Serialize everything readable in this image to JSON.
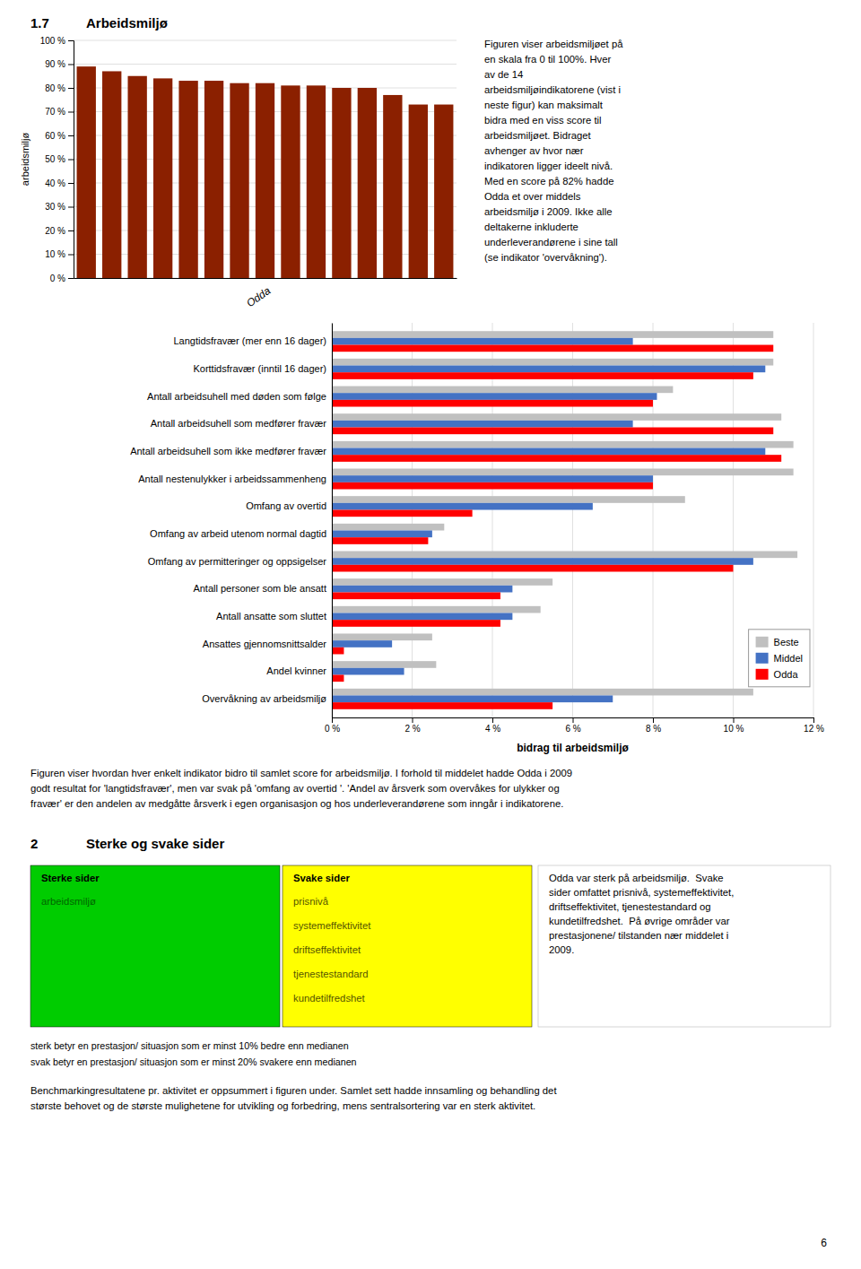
{
  "heading": {
    "number": "1.7",
    "text": "Arbeidsmiljø"
  },
  "chart_data": [
    {
      "type": "bar",
      "categories": [
        null,
        null,
        null,
        null,
        null,
        null,
        null,
        "Odda",
        null,
        null,
        null,
        null,
        null,
        null,
        null
      ],
      "values": [
        89,
        87,
        85,
        84,
        83,
        83,
        82,
        82,
        81,
        81,
        80,
        80,
        77,
        73,
        73
      ],
      "color": "#8B2000",
      "ylabel": "arbeidsmiljø",
      "ylim": [
        0,
        100
      ],
      "yticks": [
        {
          "value": 0,
          "label": "0 %"
        },
        {
          "value": 10,
          "label": "10 %"
        },
        {
          "value": 20,
          "label": "20 %"
        },
        {
          "value": 30,
          "label": "30 %"
        },
        {
          "value": 40,
          "label": "40 %"
        },
        {
          "value": 50,
          "label": "50 %"
        },
        {
          "value": 60,
          "label": "60 %"
        },
        {
          "value": 70,
          "label": "70 %"
        },
        {
          "value": 80,
          "label": "80 %"
        },
        {
          "value": 90,
          "label": "90 %"
        },
        {
          "value": 100,
          "label": "100 %"
        }
      ],
      "grid": true
    },
    {
      "type": "bar",
      "orientation": "horizontal",
      "categories": [
        "Langtidsfravær (mer enn 16 dager)",
        "Korttidsfravær (inntil 16 dager)",
        "Antall arbeidsuhell med døden som følge",
        "Antall arbeidsuhell som medfører fravær",
        "Antall arbeidsuhell som ikke medfører fravær",
        "Antall nestenulykker i arbeidssammenheng",
        "Omfang av overtid",
        "Omfang av arbeid utenom normal dagtid",
        "Omfang av permitteringer og oppsigelser",
        "Antall personer som ble ansatt",
        "Antall ansatte som sluttet",
        "Ansattes gjennomsnittsalder",
        "Andel kvinner",
        "Overvåkning av arbeidsmiljø"
      ],
      "series": [
        {
          "name": "Beste",
          "color": "#C0C0C0",
          "values": [
            11.0,
            11.0,
            8.5,
            11.2,
            11.5,
            11.5,
            8.8,
            2.8,
            11.6,
            5.5,
            5.2,
            2.5,
            2.6,
            10.5
          ]
        },
        {
          "name": "Middel",
          "color": "#4472C4",
          "values": [
            7.5,
            10.8,
            8.1,
            7.5,
            10.8,
            8.0,
            6.5,
            2.5,
            10.5,
            4.5,
            4.5,
            1.5,
            1.8,
            7.0
          ]
        },
        {
          "name": "Odda",
          "color": "#FF0000",
          "values": [
            11.0,
            10.5,
            8.0,
            11.0,
            11.2,
            8.0,
            3.5,
            2.4,
            10.0,
            4.2,
            4.2,
            0.3,
            0.3,
            5.5
          ]
        }
      ],
      "xlabel": "bidrag til arbeidsmiljø",
      "xlim": [
        0,
        12
      ],
      "xticks": [
        {
          "value": 0,
          "label": "0 %"
        },
        {
          "value": 2,
          "label": "2 %"
        },
        {
          "value": 4,
          "label": "4 %"
        },
        {
          "value": 6,
          "label": "6 %"
        },
        {
          "value": 8,
          "label": "8 %"
        },
        {
          "value": 10,
          "label": "10 %"
        },
        {
          "value": 12,
          "label": "12 %"
        }
      ],
      "grid": true,
      "legend": "lower right"
    }
  ],
  "side_text": [
    "Figuren viser arbeidsmiljøet på",
    "en skala fra 0 til 100%. Hver",
    "av de 14",
    "arbeidsmiljøindikatorene (vist i",
    "neste figur) kan maksimalt",
    "bidra med en viss score til",
    "arbeidsmiljøet. Bidraget",
    "avhenger av hvor nær",
    "indikatoren ligger ideelt nivå.",
    "Med en score på 82% hadde",
    "Odda et over middels",
    "arbeidsmiljø i 2009. Ikke alle",
    "deltakerne inkluderte",
    "underleverandørene i sine tall",
    "(se indikator 'overvåkning')."
  ],
  "paragraph": [
    "Figuren viser hvordan hver enkelt indikator bidro til samlet score for arbeidsmiljø. I forhold til middelet hadde Odda i 2009",
    "godt resultat for 'langtidsfravær', men var svak på 'omfang av overtid '. 'Andel av årsverk som overvåkes for ulykker og",
    "fravær' er den andelen av medgåtte årsverk i egen organisasjon og hos underleverandørene som inngår i indikatorene."
  ],
  "section": {
    "number": "2",
    "text": "Sterke og svake sider"
  },
  "boxes": [
    {
      "header": "Sterke sider",
      "items": [
        "arbeidsmiljø"
      ],
      "color": "#00CC00",
      "item_color": "#006600"
    },
    {
      "header": "Svake sider",
      "items": [
        "prisnivå",
        "systemeffektivitet",
        "driftseffektivitet",
        "tjenestestandard",
        "kundetilfredshet"
      ],
      "color": "#FFFF00",
      "item_color": "#555500"
    }
  ],
  "box_text": [
    "Odda var sterk på arbeidsmiljø.  Svake",
    "sider omfattet prisnivå, systemeffektivitet,",
    "driftseffektivitet, tjenestestandard og",
    "kundetilfredshet.  På øvrige områder var",
    "prestasjonene/ tilstanden nær middelet i",
    "2009."
  ],
  "footnotes": [
    "sterk betyr en prestasjon/ situasjon som er minst 10% bedre enn medianen",
    "svak betyr en prestasjon/ situasjon som er minst 20% svakere enn medianen"
  ],
  "bottom_text": [
    "Benchmarkingresultatene pr. aktivitet er oppsummert i figuren under. Samlet sett hadde innsamling og behandling det",
    "største behovet og de største mulighetene for utvikling og forbedring, mens sentralsortering var en sterk aktivitet."
  ],
  "page_number": "6"
}
